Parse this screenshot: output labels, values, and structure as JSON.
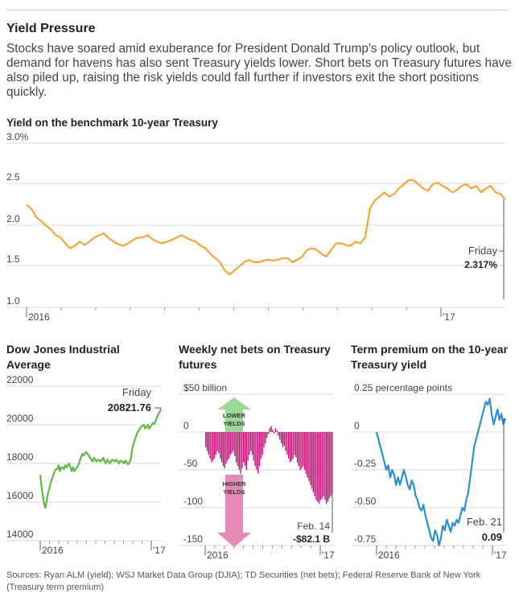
{
  "headline": "Yield Pressure",
  "dek": "Stocks have soared amid exuberance for President Donald Trump's policy outlook, but demand for havens has also sent Treasury yields lower. Short bets on Treasury futures have also piled up, raising the risk yields could fall further if investors exit the short positions quickly.",
  "sources": "Sources: Ryan ALM (yield); WSJ Market Data Group (DJIA); TD Securities (net bets); Federal Reserve Bank of New York (Treasury term premium)",
  "colors": {
    "yield": "#f2a73b",
    "djia": "#5dbb3f",
    "bets": "#c2187b",
    "premium": "#2b8fce",
    "grid": "#d9d9d9",
    "axis": "#999999",
    "arrow_green": "#8fd48c",
    "arrow_pink": "#e27db0"
  },
  "chart_data": [
    {
      "id": "yield",
      "type": "line",
      "title": "Yield on the benchmark 10-year Treasury",
      "y_ticks": [
        "3.0%",
        "2.5",
        "2.0",
        "1.5",
        "1.0"
      ],
      "y_tick_values": [
        3.0,
        2.5,
        2.0,
        1.5,
        1.0
      ],
      "ylim": [
        1.0,
        3.0
      ],
      "x_labels": [
        "2016",
        "'17"
      ],
      "annotation": {
        "label": "Friday",
        "value": "2.317%"
      },
      "series": [
        {
          "values": [
            2.25,
            2.2,
            2.1,
            2.05,
            2.0,
            1.95,
            1.88,
            1.85,
            1.78,
            1.72,
            1.75,
            1.8,
            1.76,
            1.8,
            1.85,
            1.88,
            1.9,
            1.84,
            1.8,
            1.77,
            1.75,
            1.78,
            1.82,
            1.85,
            1.85,
            1.88,
            1.83,
            1.8,
            1.78,
            1.8,
            1.82,
            1.85,
            1.88,
            1.85,
            1.82,
            1.8,
            1.75,
            1.72,
            1.65,
            1.6,
            1.55,
            1.45,
            1.4,
            1.45,
            1.5,
            1.55,
            1.58,
            1.55,
            1.55,
            1.57,
            1.58,
            1.57,
            1.58,
            1.6,
            1.6,
            1.55,
            1.58,
            1.62,
            1.7,
            1.72,
            1.7,
            1.65,
            1.62,
            1.7,
            1.78,
            1.78,
            1.76,
            1.75,
            1.8,
            1.78,
            1.85,
            2.2,
            2.3,
            2.35,
            2.4,
            2.35,
            2.38,
            2.45,
            2.5,
            2.55,
            2.55,
            2.5,
            2.45,
            2.42,
            2.5,
            2.52,
            2.48,
            2.45,
            2.4,
            2.43,
            2.48,
            2.5,
            2.45,
            2.48,
            2.4,
            2.45,
            2.48,
            2.4,
            2.38,
            2.317
          ]
        }
      ]
    },
    {
      "id": "djia",
      "type": "line",
      "title": "Dow Jones Industrial Average",
      "y_ticks": [
        "22000",
        "20000",
        "18000",
        "16000",
        "14000"
      ],
      "y_tick_values": [
        22000,
        20000,
        18000,
        16000,
        14000
      ],
      "ylim": [
        14000,
        22000
      ],
      "x_labels": [
        "2016",
        "'17"
      ],
      "annotation": {
        "label": "Friday",
        "value": "20821.76"
      },
      "series": [
        {
          "values": [
            17400,
            16800,
            16300,
            15900,
            15700,
            16100,
            16500,
            16700,
            17000,
            17200,
            17400,
            17600,
            17700,
            17700,
            17900,
            17600,
            17800,
            17800,
            17700,
            17900,
            17800,
            17900,
            18000,
            17800,
            17600,
            17800,
            17600,
            17700,
            17800,
            17900,
            18100,
            18300,
            18500,
            18400,
            18500,
            18600,
            18500,
            18400,
            18300,
            18200,
            18100,
            18300,
            18200,
            18100,
            18200,
            18150,
            18100,
            18200,
            18300,
            18100,
            18000,
            18200,
            18100,
            18000,
            18100,
            18200,
            18150,
            18100,
            18200,
            18100,
            18000,
            18150,
            18100,
            18100,
            18000,
            18150,
            18050,
            17950,
            18050,
            18200,
            18700,
            19000,
            19200,
            19400,
            19600,
            19700,
            19800,
            19900,
            19950,
            20000,
            19800,
            19900,
            20000,
            19800,
            19900,
            20000,
            20100,
            20050,
            20200,
            20400,
            20550,
            20650,
            20821.76
          ]
        }
      ]
    },
    {
      "id": "bets",
      "type": "bar",
      "title": "Weekly net bets on Treasury futures",
      "y_ticks": [
        "$50 billion",
        "0",
        "-50",
        "-100",
        "-150"
      ],
      "y_tick_values": [
        50,
        0,
        -50,
        -100,
        -150
      ],
      "ylim": [
        -150,
        50
      ],
      "x_labels": [
        "2016",
        "'17"
      ],
      "annotation": {
        "label": "Feb. 14",
        "value": "-$82.1 B"
      },
      "arrow_up": {
        "line1": "LOWER",
        "line2": "YIELDS"
      },
      "arrow_down": {
        "line1": "HIGHER",
        "line2": "YIELDS"
      },
      "values": [
        -20,
        -25,
        -30,
        -35,
        -40,
        -38,
        -35,
        -30,
        -25,
        -28,
        -35,
        -40,
        -45,
        -48,
        -42,
        -38,
        -35,
        -30,
        -28,
        -25,
        -32,
        -40,
        -45,
        -50,
        -55,
        -48,
        -40,
        -45,
        -50,
        -38,
        -30,
        -25,
        -30,
        -38,
        -45,
        -50,
        -55,
        -45,
        -35,
        -30,
        -20,
        -15,
        -8,
        -3,
        5,
        8,
        3,
        -2,
        5,
        2,
        -5,
        -10,
        -15,
        -20,
        -18,
        -25,
        -30,
        -35,
        -40,
        -38,
        -35,
        -30,
        -33,
        -40,
        -45,
        -50,
        -48,
        -45,
        -50,
        -55,
        -60,
        -65,
        -70,
        -75,
        -80,
        -85,
        -90,
        -92,
        -95,
        -90,
        -88,
        -85,
        -90,
        -95,
        -92,
        -88,
        -85,
        -82.1
      ]
    },
    {
      "id": "premium",
      "type": "line",
      "title": "Term premium on the 10-year Treasury yield",
      "y_ticks": [
        "0.25 percentage points",
        "0",
        "-0.25",
        "-0.50",
        "-0.75"
      ],
      "y_tick_values": [
        0.25,
        0,
        -0.25,
        -0.5,
        -0.75
      ],
      "ylim": [
        -0.75,
        0.25
      ],
      "x_labels": [
        "2016",
        "'17"
      ],
      "annotation": {
        "label": "Feb. 21",
        "value": "0.09"
      },
      "series": [
        {
          "values": [
            0.0,
            -0.05,
            -0.1,
            -0.15,
            -0.2,
            -0.25,
            -0.22,
            -0.3,
            -0.25,
            -0.28,
            -0.35,
            -0.3,
            -0.35,
            -0.3,
            -0.25,
            -0.3,
            -0.35,
            -0.38,
            -0.32,
            -0.35,
            -0.42,
            -0.45,
            -0.5,
            -0.52,
            -0.48,
            -0.55,
            -0.6,
            -0.65,
            -0.7,
            -0.72,
            -0.65,
            -0.68,
            -0.75,
            -0.7,
            -0.62,
            -0.65,
            -0.58,
            -0.62,
            -0.66,
            -0.6,
            -0.62,
            -0.58,
            -0.6,
            -0.55,
            -0.5,
            -0.52,
            -0.45,
            -0.4,
            -0.3,
            -0.2,
            -0.1,
            -0.05,
            0.0,
            0.05,
            0.1,
            0.15,
            0.2,
            0.18,
            0.22,
            0.12,
            0.05,
            0.1,
            0.15,
            0.08,
            0.12,
            0.05,
            0.09
          ]
        }
      ]
    }
  ]
}
